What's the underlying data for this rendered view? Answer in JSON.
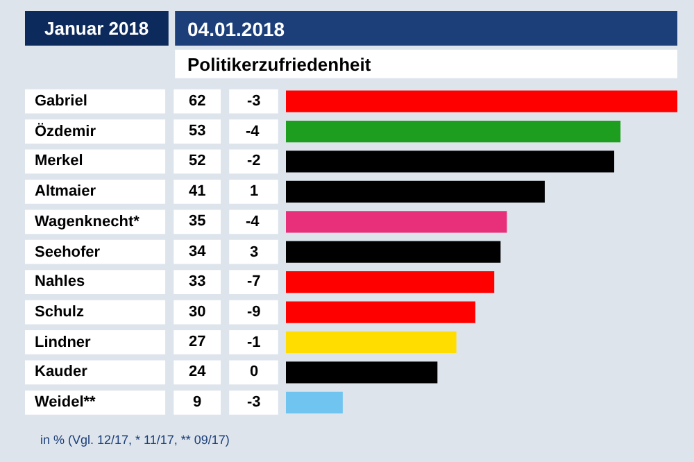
{
  "chart_data": {
    "type": "bar",
    "orientation": "horizontal",
    "title": "04.01.2018",
    "subtitle": "Politikerzufriedenheit",
    "categories": [
      "Gabriel",
      "Özdemir",
      "Merkel",
      "Altmaier",
      "Wagenknecht*",
      "Seehofer",
      "Nahles",
      "Schulz",
      "Lindner",
      "Kauder",
      "Weidel**"
    ],
    "values": [
      62,
      53,
      52,
      41,
      35,
      34,
      33,
      30,
      27,
      24,
      9
    ],
    "colors": [
      "#ff0000",
      "#1e9e1e",
      "#000000",
      "#000000",
      "#e8307a",
      "#000000",
      "#ff0000",
      "#ff0000",
      "#ffdd00",
      "#000000",
      "#70c4f0"
    ],
    "data_labels": true,
    "grid": false,
    "legend": false,
    "annotations": [
      "Januar 2018",
      "in % (Vgl. 12/17, * 11/17, ** 09/17)",
      "-3",
      "-4",
      "-2",
      "1",
      "-4",
      "3",
      "-7",
      "-9",
      "-1",
      "0",
      "-3"
    ]
  }
}
